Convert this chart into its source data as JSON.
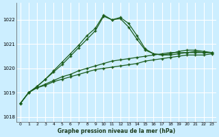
{
  "title": "Graphe pression niveau de la mer (hPa)",
  "bg_color": "#cceeff",
  "grid_color": "#ffffff",
  "line_color": "#1a5c1a",
  "xlim": [
    -0.5,
    23.5
  ],
  "ylim": [
    1017.8,
    1022.7
  ],
  "yticks": [
    1018,
    1019,
    1020,
    1021,
    1022
  ],
  "xticks": [
    0,
    1,
    2,
    3,
    4,
    5,
    6,
    7,
    8,
    9,
    10,
    11,
    12,
    13,
    14,
    15,
    16,
    17,
    18,
    19,
    20,
    21,
    22,
    23
  ],
  "series_flat1": {
    "x": [
      0,
      1,
      2,
      3,
      4,
      5,
      6,
      7,
      8,
      9,
      10,
      11,
      12,
      13,
      14,
      15,
      16,
      17,
      18,
      19,
      20,
      21,
      22,
      23
    ],
    "y": [
      1018.55,
      1019.0,
      1019.2,
      1019.3,
      1019.45,
      1019.55,
      1019.65,
      1019.75,
      1019.85,
      1019.95,
      1020.0,
      1020.05,
      1020.1,
      1020.15,
      1020.2,
      1020.3,
      1020.35,
      1020.4,
      1020.45,
      1020.5,
      1020.55,
      1020.55,
      1020.55,
      1020.6
    ]
  },
  "series_flat2": {
    "x": [
      0,
      1,
      2,
      3,
      4,
      5,
      6,
      7,
      8,
      9,
      10,
      11,
      12,
      13,
      14,
      15,
      16,
      17,
      18,
      19,
      20,
      21,
      22,
      23
    ],
    "y": [
      1018.55,
      1019.0,
      1019.2,
      1019.35,
      1019.5,
      1019.65,
      1019.75,
      1019.9,
      1020.0,
      1020.1,
      1020.2,
      1020.3,
      1020.35,
      1020.4,
      1020.45,
      1020.5,
      1020.55,
      1020.6,
      1020.65,
      1020.65,
      1020.65,
      1020.65,
      1020.65,
      1020.65
    ]
  },
  "series_peak1": {
    "x": [
      0,
      1,
      2,
      3,
      4,
      5,
      6,
      7,
      8,
      9,
      10,
      11,
      12,
      13,
      14,
      15,
      16,
      17,
      18,
      19,
      20,
      21,
      22,
      23
    ],
    "y": [
      1018.55,
      1019.0,
      1019.25,
      1019.55,
      1019.85,
      1020.15,
      1020.5,
      1020.85,
      1021.2,
      1021.55,
      1022.15,
      1022.0,
      1022.05,
      1021.7,
      1021.2,
      1020.75,
      1020.6,
      1020.55,
      1020.55,
      1020.6,
      1020.65,
      1020.7,
      1020.65,
      1020.65
    ]
  },
  "series_peak2": {
    "x": [
      0,
      1,
      2,
      3,
      4,
      5,
      6,
      7,
      8,
      9,
      10,
      11,
      12,
      13,
      14,
      15,
      16,
      17,
      18,
      19,
      20,
      21,
      22,
      23
    ],
    "y": [
      1018.55,
      1019.0,
      1019.25,
      1019.55,
      1019.9,
      1020.25,
      1020.6,
      1020.95,
      1021.35,
      1021.65,
      1022.2,
      1022.0,
      1022.1,
      1021.85,
      1021.35,
      1020.8,
      1020.6,
      1020.55,
      1020.6,
      1020.7,
      1020.75,
      1020.75,
      1020.7,
      1020.65
    ]
  }
}
